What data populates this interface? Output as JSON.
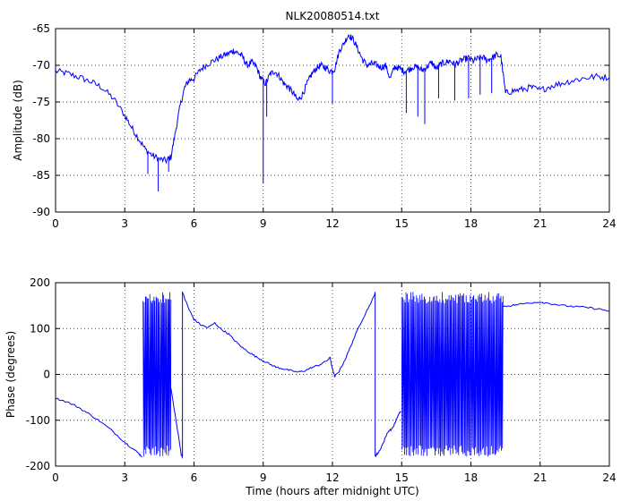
{
  "chart_data": [
    {
      "type": "line",
      "title": "NLK20080514.txt",
      "xlabel": "",
      "ylabel": "Amplitude (dB)",
      "xlim": [
        0,
        24
      ],
      "ylim": [
        -90,
        -65
      ],
      "xticks": [
        "0",
        "3",
        "6",
        "9",
        "12",
        "15",
        "18",
        "21",
        "24"
      ],
      "yticks": [
        "-90",
        "-85",
        "-80",
        "-75",
        "-70",
        "-65"
      ],
      "grid": true,
      "color": "#0000ff",
      "x": [
        0,
        0.5,
        1,
        1.5,
        2,
        2.5,
        3,
        3.3,
        3.6,
        3.9,
        4.2,
        4.5,
        4.8,
        5.0,
        5.2,
        5.4,
        5.6,
        5.8,
        6.0,
        6.3,
        6.6,
        6.9,
        7.2,
        7.5,
        7.7,
        7.9,
        8.1,
        8.3,
        8.5,
        8.7,
        8.9,
        9.1,
        9.3,
        9.5,
        9.7,
        9.9,
        10.1,
        10.3,
        10.5,
        10.7,
        10.9,
        11.1,
        11.3,
        11.5,
        11.7,
        11.9,
        12.1,
        12.3,
        12.5,
        12.7,
        12.9,
        13.1,
        13.3,
        13.5,
        13.7,
        13.9,
        14.1,
        14.3,
        14.5,
        14.7,
        14.9,
        15.1,
        15.3,
        15.5,
        15.7,
        15.9,
        16.1,
        16.3,
        16.5,
        16.7,
        16.9,
        17.1,
        17.3,
        17.5,
        17.7,
        17.9,
        18.1,
        18.3,
        18.5,
        18.7,
        18.9,
        19.1,
        19.3,
        19.5,
        19.8,
        20.2,
        20.6,
        21.0,
        21.5,
        22.0,
        22.5,
        23.0,
        23.5,
        24.0
      ],
      "values": [
        -70.8,
        -71.1,
        -71.6,
        -72.2,
        -73.0,
        -74.5,
        -76.8,
        -78.5,
        -80.0,
        -81.5,
        -82.3,
        -82.8,
        -83.0,
        -82.5,
        -79.0,
        -75.5,
        -73.0,
        -72.0,
        -71.8,
        -70.5,
        -69.8,
        -69.3,
        -68.8,
        -68.4,
        -68.0,
        -68.3,
        -68.8,
        -70.0,
        -69.6,
        -70.2,
        -71.8,
        -72.5,
        -71.2,
        -70.8,
        -71.5,
        -72.5,
        -73.0,
        -73.8,
        -74.8,
        -74.0,
        -72.5,
        -71.2,
        -70.4,
        -70.0,
        -70.3,
        -70.8,
        -70.5,
        -68.0,
        -67.0,
        -65.8,
        -66.5,
        -67.8,
        -69.2,
        -70.0,
        -69.8,
        -69.9,
        -70.3,
        -70.0,
        -71.8,
        -70.2,
        -70.4,
        -70.8,
        -70.6,
        -70.2,
        -70.3,
        -70.7,
        -70.2,
        -69.6,
        -70.5,
        -69.8,
        -69.6,
        -69.4,
        -69.9,
        -69.5,
        -69.2,
        -69.0,
        -69.4,
        -69.1,
        -68.9,
        -69.3,
        -69.0,
        -68.6,
        -68.8,
        -73.8,
        -73.5,
        -73.3,
        -73.0,
        -73.4,
        -72.8,
        -72.4,
        -72.0,
        -71.7,
        -71.5,
        -71.7
      ],
      "spikes": [
        {
          "x": 4.0,
          "value": -84.8
        },
        {
          "x": 4.45,
          "value": -87.2
        },
        {
          "x": 4.9,
          "value": -84.5
        },
        {
          "x": 9.0,
          "value": -86.1
        },
        {
          "x": 9.15,
          "value": -77.0
        },
        {
          "x": 12.0,
          "value": -75.2
        },
        {
          "x": 15.2,
          "value": -76.5
        },
        {
          "x": 15.7,
          "value": -77.0
        },
        {
          "x": 16.0,
          "value": -78.0
        },
        {
          "x": 16.6,
          "value": -74.5
        },
        {
          "x": 17.3,
          "value": -74.8
        },
        {
          "x": 17.9,
          "value": -74.5
        },
        {
          "x": 18.4,
          "value": -74.0
        },
        {
          "x": 18.9,
          "value": -73.8
        }
      ]
    },
    {
      "type": "line",
      "title": "",
      "xlabel": "Time (hours after midnight UTC)",
      "ylabel": "Phase (degrees)",
      "xlim": [
        0,
        24
      ],
      "ylim": [
        -200,
        200
      ],
      "xticks": [
        "0",
        "3",
        "6",
        "9",
        "12",
        "15",
        "18",
        "21",
        "24"
      ],
      "yticks": [
        "-200",
        "-100",
        "0",
        "100",
        "200"
      ],
      "grid": true,
      "color": "#0000ff",
      "segments": [
        {
          "x": [
            0,
            0.5,
            1,
            1.5,
            2,
            2.5,
            3,
            3.3,
            3.6,
            3.75
          ],
          "values": [
            -52,
            -60,
            -72,
            -88,
            -105,
            -125,
            -148,
            -160,
            -172,
            -180
          ]
        },
        {
          "wrap_from": 3.8,
          "wrap_to": 5.0,
          "min": -180,
          "max": 180,
          "cycles": 26
        },
        {
          "x": [
            5.0,
            5.25,
            5.45,
            5.5
          ],
          "values": [
            -30,
            -110,
            -175,
            -180
          ]
        },
        {
          "x": [
            5.5,
            5.6,
            5.8,
            6.0,
            6.3,
            6.6,
            6.9,
            7.2,
            7.5,
            7.8,
            8.1,
            8.4,
            8.7,
            9.0,
            9.3,
            9.6,
            9.9,
            10.2,
            10.5,
            10.8,
            11.1,
            11.4,
            11.7,
            11.9,
            12.0,
            12.1,
            12.3,
            12.6,
            12.9,
            13.2,
            13.5,
            13.8,
            13.85
          ],
          "values": [
            180,
            165,
            140,
            120,
            108,
            102,
            112,
            98,
            88,
            72,
            58,
            48,
            38,
            30,
            22,
            15,
            12,
            8,
            5,
            8,
            15,
            20,
            28,
            36,
            12,
            -5,
            8,
            38,
            75,
            110,
            140,
            170,
            178
          ]
        },
        {
          "x": [
            13.85,
            13.9,
            14.0,
            14.2,
            14.4,
            14.6,
            14.8,
            14.95
          ],
          "values": [
            -178,
            -175,
            -170,
            -150,
            -125,
            -118,
            -95,
            -80
          ]
        },
        {
          "wrap_from": 15.0,
          "wrap_to": 19.4,
          "min": -180,
          "max": 180,
          "cycles": 90
        },
        {
          "x": [
            19.4,
            19.7,
            20.0,
            20.5,
            21.0,
            21.5,
            22.0,
            22.5,
            23.0,
            23.5,
            24.0
          ],
          "values": [
            148,
            150,
            152,
            156,
            158,
            154,
            150,
            148,
            146,
            143,
            138
          ]
        }
      ]
    }
  ]
}
